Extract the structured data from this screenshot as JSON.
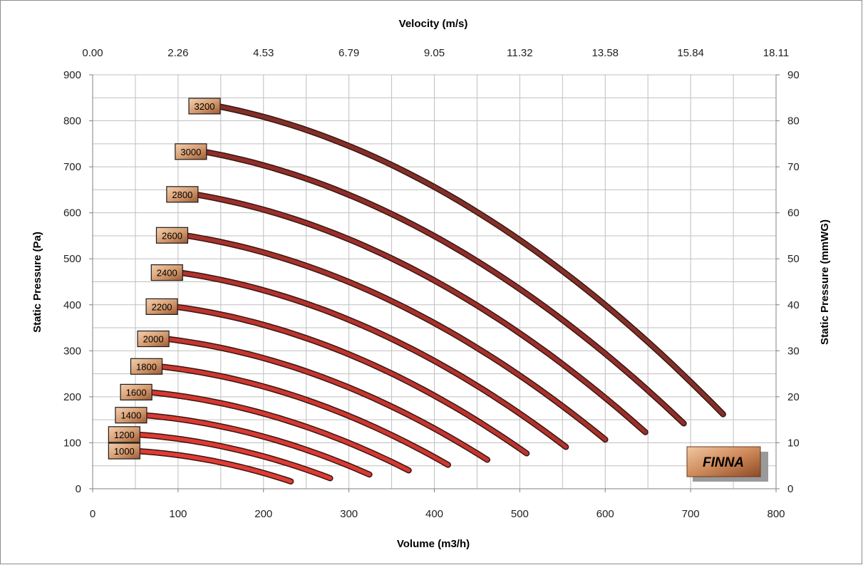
{
  "chart_data": {
    "type": "line",
    "x_axis": {
      "title": "Volume (m3/h)",
      "range": [
        0,
        800
      ],
      "ticks": [
        "0",
        "100",
        "200",
        "300",
        "400",
        "500",
        "600",
        "700",
        "800"
      ],
      "grid_minor_step": 50
    },
    "x2_axis": {
      "title": "Velocity (m/s)",
      "ticks": [
        "0.00",
        "2.26",
        "4.53",
        "6.79",
        "9.05",
        "11.32",
        "13.58",
        "15.84",
        "18.11"
      ]
    },
    "y_axis": {
      "title": "Static Pressure (Pa)",
      "range": [
        0,
        900
      ],
      "ticks": [
        "0",
        "100",
        "200",
        "300",
        "400",
        "500",
        "600",
        "700",
        "800",
        "900"
      ],
      "grid_minor_step": 50
    },
    "y2_axis": {
      "title": "Static Pressure (mmWG)",
      "ticks": [
        "0",
        "10",
        "20",
        "30",
        "40",
        "50",
        "60",
        "70",
        "80",
        "90"
      ]
    },
    "grid": true,
    "series": [
      {
        "name": "1000",
        "color": "#e03c34",
        "x0": 52,
        "y0": 82,
        "x1": 232,
        "y1": 16
      },
      {
        "name": "1200",
        "color": "#dd3b33",
        "x0": 52,
        "y0": 118,
        "x1": 278,
        "y1": 23
      },
      {
        "name": "1400",
        "color": "#d93a32",
        "x0": 60,
        "y0": 160,
        "x1": 324,
        "y1": 31
      },
      {
        "name": "1600",
        "color": "#d43931",
        "x0": 66,
        "y0": 210,
        "x1": 370,
        "y1": 40
      },
      {
        "name": "1800",
        "color": "#cc3830",
        "x0": 78,
        "y0": 266,
        "x1": 416,
        "y1": 52
      },
      {
        "name": "2000",
        "color": "#c4362f",
        "x0": 86,
        "y0": 326,
        "x1": 462,
        "y1": 63
      },
      {
        "name": "2200",
        "color": "#bb352e",
        "x0": 96,
        "y0": 396,
        "x1": 508,
        "y1": 77
      },
      {
        "name": "2400",
        "color": "#b1332d",
        "x0": 102,
        "y0": 470,
        "x1": 554,
        "y1": 91
      },
      {
        "name": "2600",
        "color": "#a6322c",
        "x0": 108,
        "y0": 551,
        "x1": 600,
        "y1": 107
      },
      {
        "name": "2800",
        "color": "#9b302b",
        "x0": 120,
        "y0": 640,
        "x1": 647,
        "y1": 123
      },
      {
        "name": "3000",
        "color": "#8f2e2a",
        "x0": 130,
        "y0": 733,
        "x1": 692,
        "y1": 142
      },
      {
        "name": "3200",
        "color": "#823029",
        "x0": 146,
        "y0": 832,
        "x1": 738,
        "y1": 162
      }
    ]
  },
  "brand": {
    "text": "FINNA"
  }
}
